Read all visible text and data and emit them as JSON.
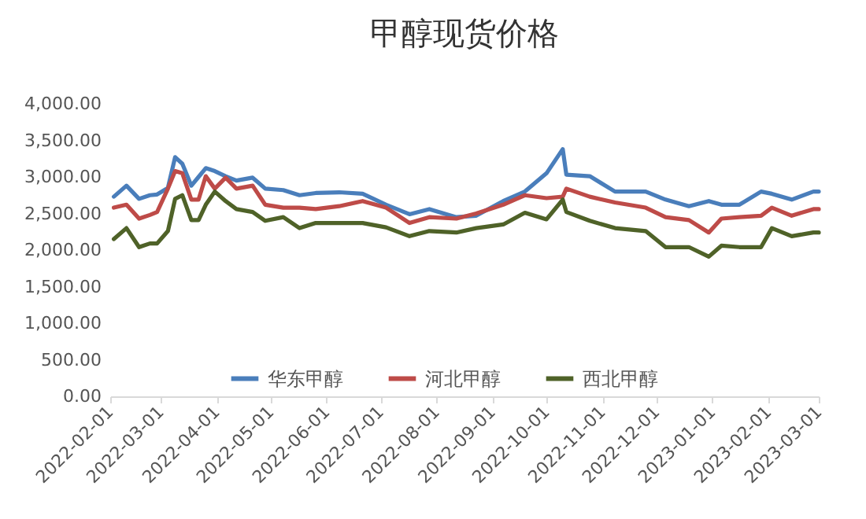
{
  "chart_data": {
    "type": "line",
    "title": "甲醇现货价格",
    "x": [
      "2022-02-03",
      "2022-02-10",
      "2022-02-17",
      "2022-02-23",
      "2022-02-27",
      "2022-03-05",
      "2022-03-09",
      "2022-03-13",
      "2022-03-18",
      "2022-03-22",
      "2022-03-26",
      "2022-03-31",
      "2022-04-06",
      "2022-04-12",
      "2022-04-21",
      "2022-04-28",
      "2022-05-08",
      "2022-05-17",
      "2022-05-26",
      "2022-06-08",
      "2022-06-21",
      "2022-07-04",
      "2022-07-17",
      "2022-07-28",
      "2022-08-12",
      "2022-08-23",
      "2022-09-07",
      "2022-09-19",
      "2022-10-01",
      "2022-10-10",
      "2022-10-12",
      "2022-10-25",
      "2022-11-08",
      "2022-11-25",
      "2022-12-06",
      "2022-12-19",
      "2022-12-30",
      "2023-01-06",
      "2023-01-16",
      "2023-01-28",
      "2023-02-03",
      "2023-02-14",
      "2023-02-26",
      "2023-03-01"
    ],
    "series": [
      {
        "name": "华东甲醇",
        "color": "#4a7ebb",
        "values": [
          2730,
          2880,
          2700,
          2750,
          2760,
          2850,
          3270,
          3180,
          2880,
          3000,
          3120,
          3080,
          3010,
          2950,
          2990,
          2840,
          2820,
          2750,
          2780,
          2790,
          2770,
          2620,
          2490,
          2560,
          2450,
          2470,
          2670,
          2800,
          3050,
          3380,
          3030,
          3010,
          2800,
          2800,
          2690,
          2600,
          2670,
          2620,
          2620,
          2800,
          2770,
          2690,
          2800,
          2800
        ]
      },
      {
        "name": "河北甲醇",
        "color": "#be4b48",
        "values": [
          2580,
          2620,
          2430,
          2480,
          2520,
          2840,
          3080,
          3050,
          2690,
          2690,
          3010,
          2840,
          2990,
          2840,
          2880,
          2620,
          2580,
          2580,
          2560,
          2600,
          2670,
          2580,
          2370,
          2450,
          2430,
          2500,
          2620,
          2750,
          2710,
          2730,
          2840,
          2730,
          2650,
          2580,
          2450,
          2410,
          2240,
          2430,
          2450,
          2470,
          2580,
          2470,
          2560,
          2560
        ]
      },
      {
        "name": "西北甲醇",
        "color": "#4f6228",
        "values": [
          2150,
          2300,
          2040,
          2090,
          2090,
          2260,
          2700,
          2750,
          2410,
          2410,
          2620,
          2800,
          2670,
          2560,
          2520,
          2400,
          2450,
          2300,
          2370,
          2370,
          2370,
          2310,
          2190,
          2260,
          2240,
          2300,
          2350,
          2510,
          2420,
          2690,
          2520,
          2400,
          2300,
          2260,
          2040,
          2040,
          1910,
          2060,
          2040,
          2040,
          2300,
          2190,
          2240,
          2240
        ]
      }
    ],
    "xlim": [
      "2022-02-01",
      "2023-03-01"
    ],
    "xticks": [
      "2022-02-01",
      "2022-03-01",
      "2022-04-01",
      "2022-05-01",
      "2022-06-01",
      "2022-07-01",
      "2022-08-01",
      "2022-09-01",
      "2022-10-01",
      "2022-11-01",
      "2022-12-01",
      "2023-01-01",
      "2023-02-01",
      "2023-03-01"
    ],
    "ylim": [
      0,
      4000
    ],
    "yticks": [
      {
        "value": 0,
        "label": "0.00"
      },
      {
        "value": 500,
        "label": "500.00"
      },
      {
        "value": 1000,
        "label": "1,000.00"
      },
      {
        "value": 1500,
        "label": "1,500.00"
      },
      {
        "value": 2000,
        "label": "2,000.00"
      },
      {
        "value": 2500,
        "label": "2,500.00"
      },
      {
        "value": 3000,
        "label": "3,000.00"
      },
      {
        "value": 3500,
        "label": "3,500.00"
      },
      {
        "value": 4000,
        "label": "4,000.00"
      }
    ],
    "grid": false,
    "legend": "bottom",
    "line_style": "solid"
  }
}
